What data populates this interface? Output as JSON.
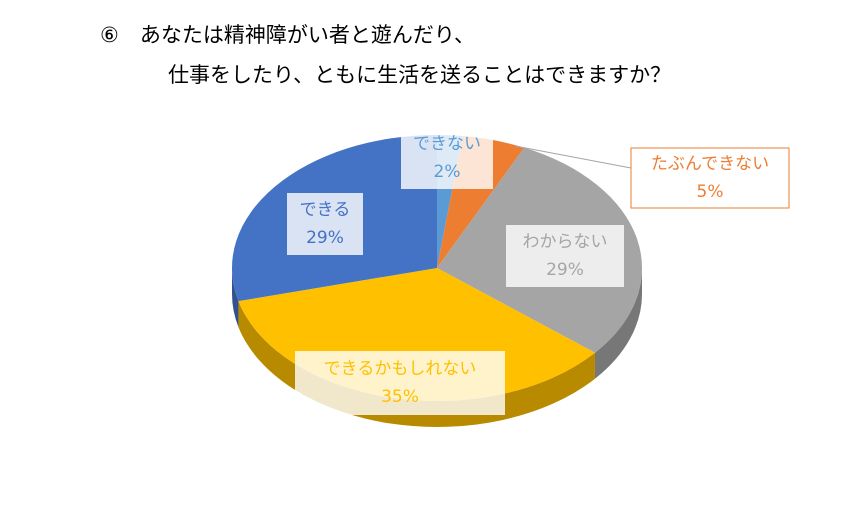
{
  "chart_data": {
    "type": "pie3d",
    "title": [
      "⑥　あなたは精神障がい者と遊んだり、",
      "仕事をしたり、ともに生活を送ることはできますか？"
    ],
    "categories": [
      "できない",
      "たぶんできない",
      "わからない",
      "できるかもしれない",
      "できる"
    ],
    "values": [
      2,
      5,
      29,
      35,
      29
    ],
    "value_labels": [
      "2%",
      "5%",
      "29%",
      "35%",
      "29%"
    ],
    "colors": [
      "#5b9bd5",
      "#ed7d31",
      "#a5a5a5",
      "#ffc000",
      "#4472c4"
    ]
  }
}
